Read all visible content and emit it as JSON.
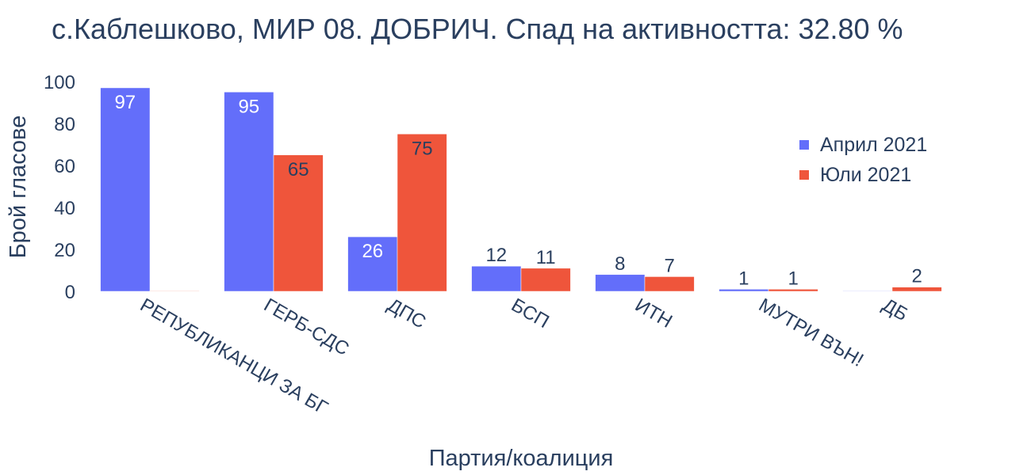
{
  "chart_data": {
    "type": "bar",
    "title": "с.Каблешково, МИР 08. ДОБРИЧ. Спад на активността: 32.80 %",
    "xlabel": "Партия/коалиция",
    "ylabel": "Брой гласове",
    "ylim": [
      0,
      100
    ],
    "yticks": [
      0,
      20,
      40,
      60,
      80,
      100
    ],
    "grid": false,
    "legend_position": "top-right",
    "categories": [
      "РЕПУБЛИКАНЦИ ЗА БГ",
      "ГЕРБ-СДС",
      "ДПС",
      "БСП",
      "ИТН",
      "МУТРИ ВЪН!",
      "ДБ"
    ],
    "series": [
      {
        "name": "Април 2021",
        "color": "#636efa",
        "values": [
          97,
          95,
          26,
          12,
          8,
          1,
          0
        ]
      },
      {
        "name": "Юли 2021",
        "color": "#ef553b",
        "values": [
          0,
          65,
          75,
          11,
          7,
          1,
          2
        ]
      }
    ]
  }
}
